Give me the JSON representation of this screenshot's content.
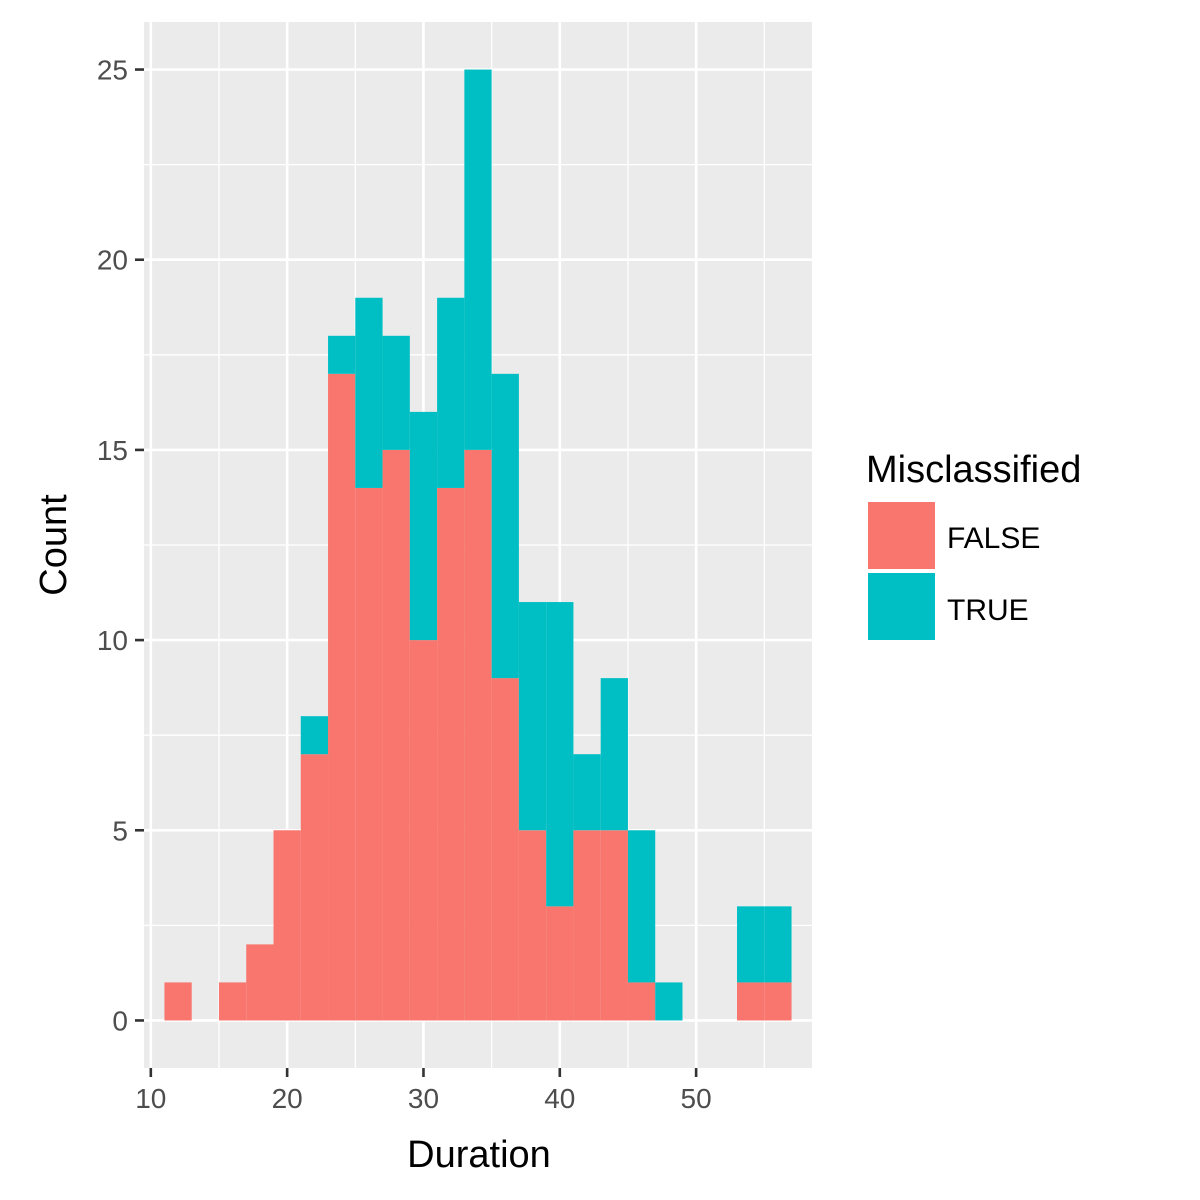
{
  "chart_data": {
    "type": "bar",
    "stacked": true,
    "title": "",
    "xlabel": "Duration",
    "ylabel": "Count",
    "xlim": [
      9.5,
      58.5
    ],
    "ylim": [
      -1.25,
      26.25
    ],
    "x_ticks": [
      10,
      20,
      30,
      40,
      50
    ],
    "y_ticks": [
      0,
      5,
      10,
      15,
      20,
      25
    ],
    "bin_width": 2,
    "bins": [
      [
        11,
        13
      ],
      [
        13,
        15
      ],
      [
        15,
        17
      ],
      [
        17,
        19
      ],
      [
        19,
        21
      ],
      [
        21,
        23
      ],
      [
        23,
        25
      ],
      [
        25,
        27
      ],
      [
        27,
        29
      ],
      [
        29,
        31
      ],
      [
        31,
        33
      ],
      [
        33,
        35
      ],
      [
        35,
        37
      ],
      [
        37,
        39
      ],
      [
        39,
        41
      ],
      [
        41,
        43
      ],
      [
        43,
        45
      ],
      [
        45,
        47
      ],
      [
        47,
        49
      ],
      [
        49,
        51
      ],
      [
        51,
        53
      ],
      [
        53,
        55
      ],
      [
        55,
        57
      ]
    ],
    "grid": true,
    "legend": {
      "title": "Misclassified",
      "position": "right"
    },
    "series": [
      {
        "name": "FALSE",
        "color": "#F8766D",
        "values": [
          1,
          0,
          1,
          2,
          5,
          7,
          17,
          14,
          15,
          10,
          14,
          15,
          9,
          5,
          3,
          5,
          5,
          1,
          0,
          0,
          0,
          1,
          1
        ]
      },
      {
        "name": "TRUE",
        "color": "#00BFC4",
        "values": [
          0,
          0,
          0,
          0,
          0,
          1,
          1,
          5,
          3,
          6,
          5,
          10,
          8,
          6,
          8,
          2,
          4,
          4,
          1,
          0,
          0,
          2,
          2
        ]
      }
    ],
    "panel_background": "#EBEBEB"
  }
}
